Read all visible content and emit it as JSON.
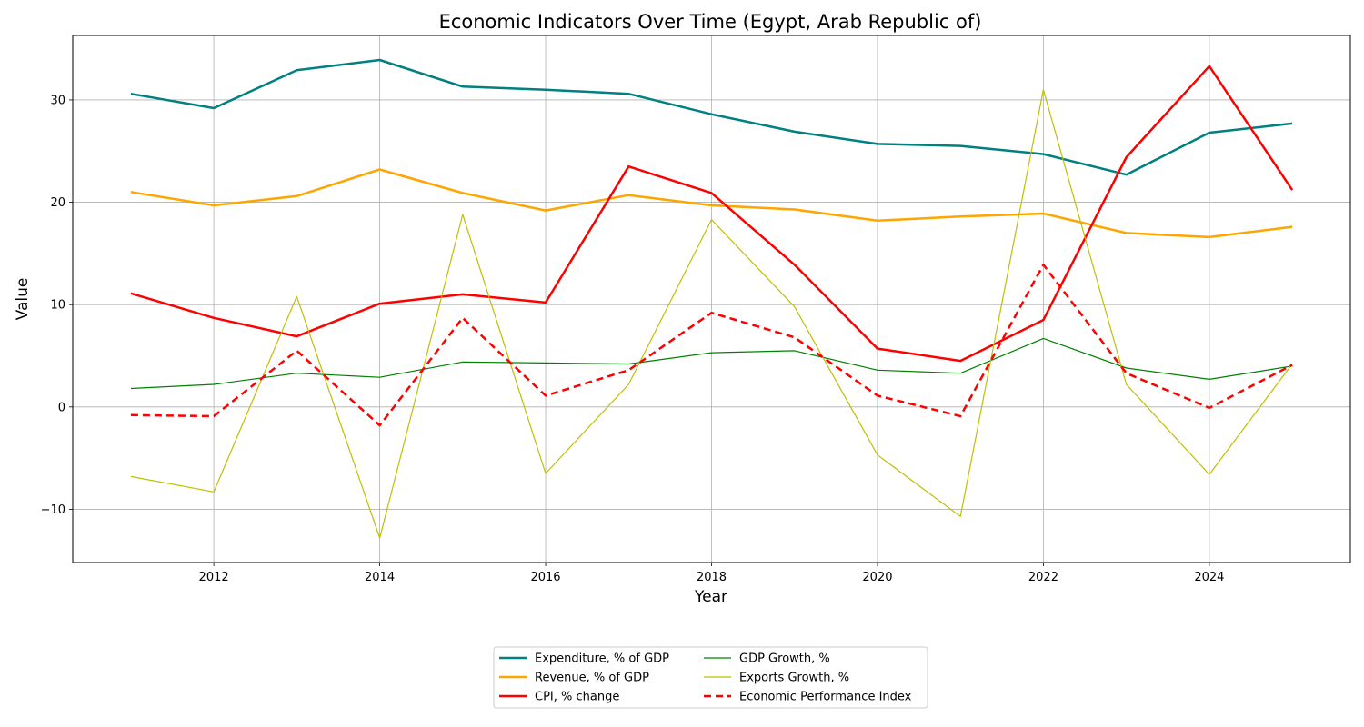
{
  "chart_data": {
    "type": "line",
    "title": "Economic Indicators Over Time (Egypt, Arab Republic of)",
    "xlabel": "Year",
    "ylabel": "Value",
    "x": [
      2011,
      2012,
      2013,
      2014,
      2015,
      2016,
      2017,
      2018,
      2019,
      2020,
      2021,
      2022,
      2023,
      2024,
      2025
    ],
    "xlim": [
      2010.3,
      2025.7
    ],
    "ylim": [
      -15.2,
      36.3
    ],
    "xticks": [
      2012,
      2014,
      2016,
      2018,
      2020,
      2022,
      2024
    ],
    "yticks": [
      -10,
      0,
      10,
      20,
      30
    ],
    "grid": true,
    "legend_position": "bottom-center",
    "series": [
      {
        "name": "Expenditure, % of GDP",
        "color": "#008080",
        "width": 2.5,
        "dash": "",
        "values": [
          30.6,
          29.2,
          32.9,
          33.9,
          31.3,
          31.0,
          30.6,
          28.6,
          26.9,
          25.7,
          25.5,
          24.7,
          22.7,
          26.8,
          27.7
        ]
      },
      {
        "name": "Revenue, % of GDP",
        "color": "#ffa500",
        "width": 2.5,
        "dash": "",
        "values": [
          21.0,
          19.7,
          20.6,
          23.2,
          20.9,
          19.2,
          20.7,
          19.7,
          19.3,
          18.2,
          18.6,
          18.9,
          17.0,
          16.6,
          17.6
        ]
      },
      {
        "name": "CPI, % change",
        "color": "#ff0000",
        "width": 2.5,
        "dash": "",
        "values": [
          11.1,
          8.7,
          6.9,
          10.1,
          11.0,
          10.2,
          23.5,
          20.9,
          13.9,
          5.7,
          4.5,
          8.5,
          24.4,
          33.3,
          21.2
        ]
      },
      {
        "name": "GDP Growth, %",
        "color": "#008000",
        "width": 1.2,
        "dash": "",
        "values": [
          1.8,
          2.2,
          3.3,
          2.9,
          4.4,
          4.3,
          4.2,
          5.3,
          5.5,
          3.6,
          3.3,
          6.7,
          3.8,
          2.7,
          4.0
        ]
      },
      {
        "name": "Exports Growth, %",
        "color": "#bfbf00",
        "width": 1.2,
        "dash": "",
        "values": [
          -6.8,
          -8.3,
          10.8,
          -12.8,
          18.8,
          -6.5,
          2.2,
          18.3,
          9.8,
          -4.7,
          -10.7,
          31.0,
          2.2,
          -6.6,
          4.2
        ]
      },
      {
        "name": "Economic Performance Index",
        "color": "#ff0000",
        "width": 2.5,
        "dash": "8,5",
        "values": [
          -0.8,
          -0.9,
          5.5,
          -1.8,
          8.7,
          1.1,
          3.6,
          9.2,
          6.8,
          1.1,
          -0.9,
          13.9,
          3.3,
          -0.1,
          4.1
        ]
      }
    ]
  }
}
